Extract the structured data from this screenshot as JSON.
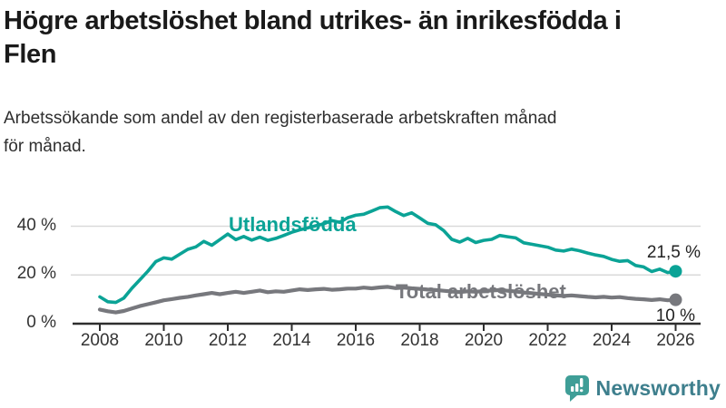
{
  "header": {
    "title_line1": "Högre arbetslöshet bland utrikes- än inrikesfödda i",
    "title_line2": "Flen",
    "subtitle_line1": "Arbetssökande som andel av den registerbaserade arbetskraften månad",
    "subtitle_line2": "för månad."
  },
  "footer": {
    "brand": "Newsworthy",
    "brand_text_color": "#3e7f8d",
    "icon": "newsworthy-chart-bubble-icon",
    "icon_color": "#3f9e97"
  },
  "chart_data": {
    "type": "line",
    "title": "Högre arbetslöshet bland utrikes- än inrikesfödda i Flen",
    "subtitle": "Arbetssökande som andel av den registerbaserade arbetskraften månad för månad.",
    "x_unit": "year (monthly series shown, sampled quarterly)",
    "x_start": 2008,
    "x_step": 0.25,
    "xlim": [
      2008,
      2026.75
    ],
    "ylim": [
      0,
      52
    ],
    "grid": "horizontal",
    "grid_color": "#d9d9d9",
    "axis_color": "#2e2e2e",
    "tick_label_color": "#333333",
    "yticks": [
      {
        "value": 0,
        "label": "0 %"
      },
      {
        "value": 20,
        "label": "20 %"
      },
      {
        "value": 40,
        "label": "40 %"
      }
    ],
    "xticks": [
      {
        "value": 2008,
        "label": "2008"
      },
      {
        "value": 2010,
        "label": "2010"
      },
      {
        "value": 2012,
        "label": "2012"
      },
      {
        "value": 2014,
        "label": "2014"
      },
      {
        "value": 2016,
        "label": "2016"
      },
      {
        "value": 2018,
        "label": "2018"
      },
      {
        "value": 2020,
        "label": "2020"
      },
      {
        "value": 2022,
        "label": "2022"
      },
      {
        "value": 2024,
        "label": "2024"
      },
      {
        "value": 2026,
        "label": "2026"
      }
    ],
    "series": [
      {
        "name": "Utlandsfödda",
        "color": "#0ba396",
        "end_value": 21.5,
        "end_label": "21,5 %",
        "values": [
          11.0,
          9.0,
          8.7,
          10.5,
          14.5,
          18.0,
          21.5,
          25.5,
          27.0,
          26.5,
          28.5,
          30.5,
          31.5,
          33.8,
          32.2,
          34.5,
          36.8,
          34.5,
          35.8,
          34.3,
          35.5,
          34.2,
          35.0,
          36.2,
          37.5,
          38.5,
          39.3,
          40.2,
          41.0,
          42.3,
          41.6,
          43.5,
          44.5,
          44.9,
          46.2,
          47.6,
          47.9,
          46.0,
          44.4,
          45.5,
          43.4,
          41.2,
          40.6,
          38.2,
          34.6,
          33.5,
          35.0,
          33.3,
          34.2,
          34.6,
          36.2,
          35.7,
          35.2,
          33.2,
          32.6,
          32.0,
          31.4,
          30.2,
          29.8,
          30.6,
          29.9,
          29.0,
          28.2,
          27.6,
          26.4,
          25.6,
          25.9,
          23.9,
          23.3,
          21.4,
          22.4,
          21.0,
          21.5
        ]
      },
      {
        "name": "Total arbetslöshet",
        "color": "#77787d",
        "end_value": 10,
        "end_label": "10 %",
        "values": [
          5.8,
          5.1,
          4.6,
          5.2,
          6.2,
          7.2,
          8.0,
          8.8,
          9.6,
          10.1,
          10.6,
          11.0,
          11.6,
          12.1,
          12.6,
          12.1,
          12.6,
          13.1,
          12.6,
          13.1,
          13.6,
          12.9,
          13.3,
          13.1,
          13.6,
          14.1,
          13.8,
          14.1,
          14.3,
          13.9,
          14.1,
          14.4,
          14.4,
          14.8,
          14.5,
          14.9,
          15.1,
          14.6,
          14.8,
          14.5,
          14.3,
          14.0,
          13.8,
          13.5,
          13.2,
          13.0,
          13.3,
          13.1,
          13.4,
          13.6,
          13.8,
          13.5,
          13.2,
          12.8,
          12.5,
          12.2,
          11.9,
          11.6,
          11.4,
          11.6,
          11.3,
          11.0,
          10.8,
          11.0,
          10.7,
          10.9,
          10.5,
          10.2,
          10.0,
          9.7,
          10.0,
          9.6,
          9.8
        ]
      }
    ],
    "legend_position": "inline-labels-on-lines",
    "annotations": [
      "21,5 %",
      "10 %"
    ]
  }
}
